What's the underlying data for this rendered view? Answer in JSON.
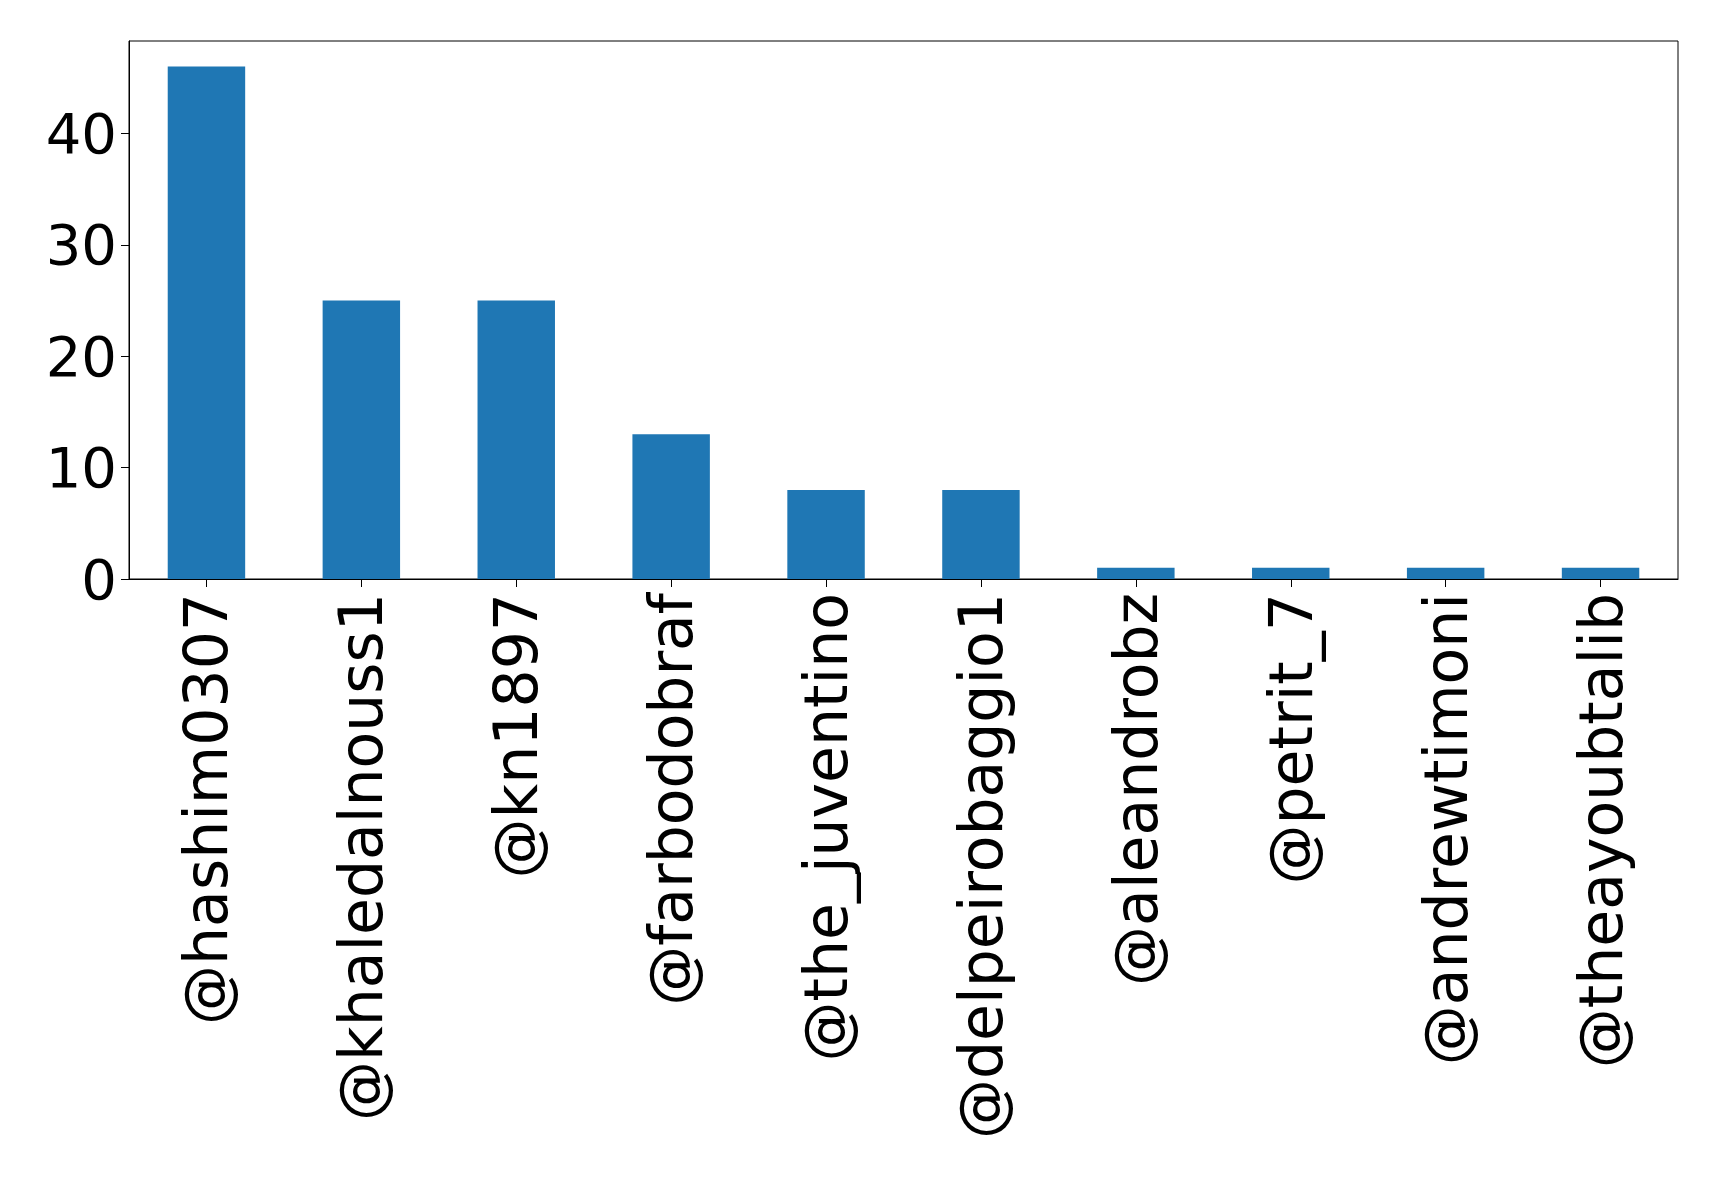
{
  "chart_data": {
    "type": "bar",
    "categories": [
      "@hashim0307",
      "@khaledalnouss1",
      "@kn1897",
      "@farbodobraf",
      "@the_juventino",
      "@delpeirobaggio1",
      "@aleandrobz",
      "@petrit_7",
      "@andrewtimoni",
      "@theayoubtalib"
    ],
    "values": [
      46,
      25,
      25,
      13,
      8,
      8,
      1,
      1,
      1,
      1
    ],
    "color": "#1f77b4",
    "ylim": [
      0,
      48.3
    ],
    "yticks": [
      0,
      10,
      20,
      30,
      40
    ],
    "grid": false
  }
}
